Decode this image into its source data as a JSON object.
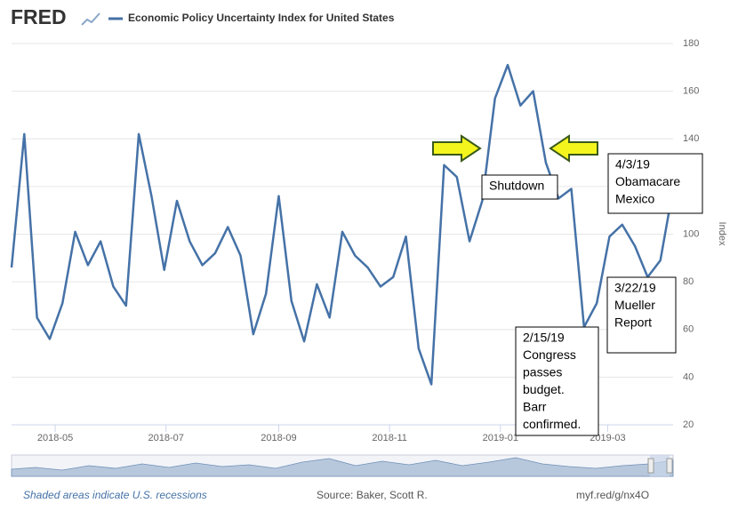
{
  "header": {
    "logo": "FRED"
  },
  "chart_data": {
    "type": "line",
    "title": "Economic Policy Uncertainty Index for United States",
    "y_label": "Index",
    "x": [
      "2018-04-07",
      "2018-04-14",
      "2018-04-21",
      "2018-04-28",
      "2018-05-05",
      "2018-05-12",
      "2018-05-19",
      "2018-05-26",
      "2018-06-02",
      "2018-06-09",
      "2018-06-16",
      "2018-06-23",
      "2018-06-30",
      "2018-07-07",
      "2018-07-14",
      "2018-07-21",
      "2018-07-28",
      "2018-08-04",
      "2018-08-11",
      "2018-08-18",
      "2018-08-25",
      "2018-09-01",
      "2018-09-08",
      "2018-09-15",
      "2018-09-22",
      "2018-09-29",
      "2018-10-06",
      "2018-10-13",
      "2018-10-20",
      "2018-10-27",
      "2018-11-03",
      "2018-11-10",
      "2018-11-17",
      "2018-11-24",
      "2018-12-01",
      "2018-12-08",
      "2018-12-15",
      "2018-12-22",
      "2018-12-29",
      "2019-01-05",
      "2019-01-12",
      "2019-01-19",
      "2019-01-26",
      "2019-02-02",
      "2019-02-09",
      "2019-02-16",
      "2019-02-23",
      "2019-03-02",
      "2019-03-09",
      "2019-03-16",
      "2019-03-23",
      "2019-03-30",
      "2019-04-06"
    ],
    "series": [
      {
        "name": "Economic Policy Uncertainty Index for United States",
        "color": "#4572a7",
        "values": [
          86,
          142,
          65,
          56,
          71,
          101,
          87,
          97,
          78,
          70,
          142,
          116,
          85,
          114,
          97,
          87,
          92,
          103,
          91,
          58,
          75,
          116,
          72,
          55,
          79,
          65,
          101,
          91,
          86,
          78,
          82,
          99,
          52,
          37,
          129,
          124,
          97,
          114,
          157,
          171,
          154,
          160,
          130,
          115,
          119,
          61,
          71,
          99,
          104,
          95,
          82,
          89,
          119
        ]
      }
    ],
    "xlim": [
      "2018-04-07",
      "2019-04-06"
    ],
    "xticks": [
      {
        "value": "2018-05-01",
        "label": "2018-05"
      },
      {
        "value": "2018-07-01",
        "label": "2018-07"
      },
      {
        "value": "2018-09-01",
        "label": "2018-09"
      },
      {
        "value": "2018-11-01",
        "label": "2018-11"
      },
      {
        "value": "2019-01-01",
        "label": "2019-01"
      },
      {
        "value": "2019-03-01",
        "label": "2019-03"
      }
    ],
    "ylim": [
      20,
      180
    ],
    "yticks": [
      20,
      40,
      60,
      80,
      100,
      120,
      140,
      160,
      180
    ],
    "grid": true,
    "annotations": [
      {
        "lines": [
          "Shutdown"
        ]
      },
      {
        "lines": [
          "4/3/19",
          "Obamacare",
          "Mexico"
        ]
      },
      {
        "lines": [
          "3/22/19",
          "Mueller",
          "Report"
        ]
      },
      {
        "lines": [
          "2/15/19",
          "Congress",
          "passes",
          "budget.",
          "Barr",
          "confirmed."
        ]
      }
    ]
  },
  "footer": {
    "note": "Shaded areas indicate U.S. recessions",
    "source": "Source: Baker, Scott R.",
    "link": "myf.red/g/nx4O"
  }
}
